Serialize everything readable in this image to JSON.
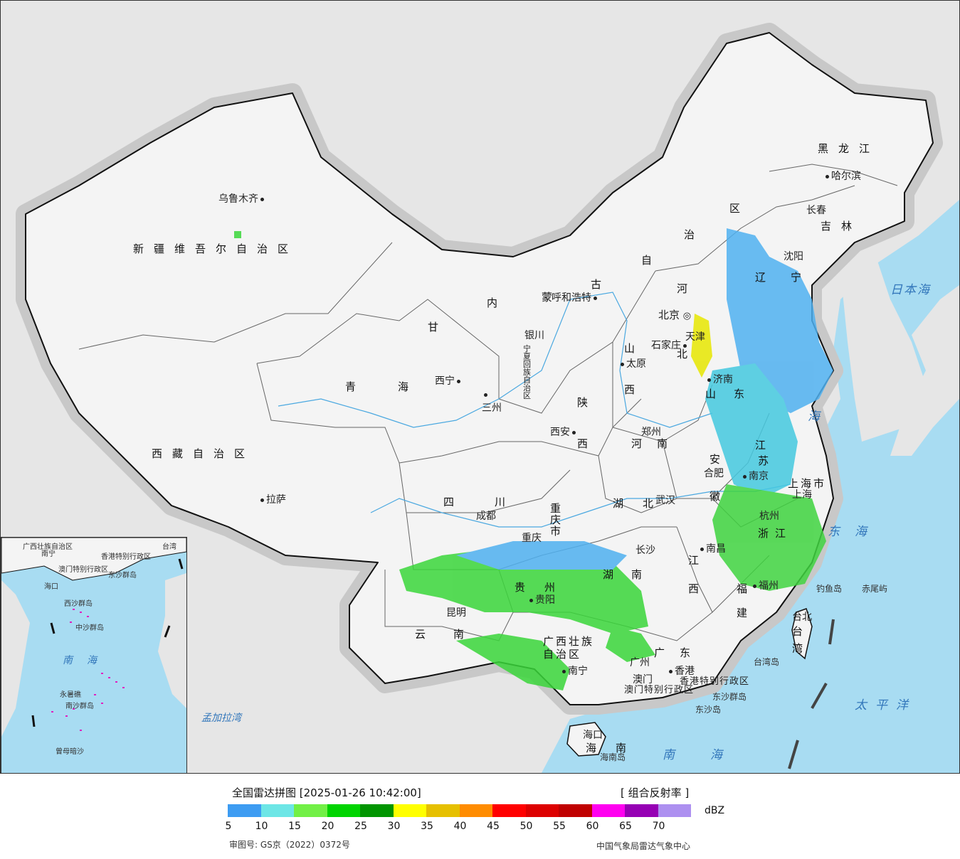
{
  "map": {
    "colors": {
      "ocean": "#a8dcf2",
      "foreign_land": "#e6e6e6",
      "china_land": "#f4f4f4",
      "border": "#111111",
      "river": "#4aa8e0"
    },
    "regions": [
      {
        "key": "xinjiang",
        "text": "新疆维吾尔自治区"
      },
      {
        "key": "xizang",
        "text": "西藏自治区"
      },
      {
        "key": "qinghai_1",
        "text": "青"
      },
      {
        "key": "qinghai_2",
        "text": "海"
      },
      {
        "key": "gansu",
        "text": "甘"
      },
      {
        "key": "neimeng_1",
        "text": "内"
      },
      {
        "key": "neimeng_2",
        "text": "蒙"
      },
      {
        "key": "neimeng_3",
        "text": "古"
      },
      {
        "key": "neimeng_4",
        "text": "自"
      },
      {
        "key": "neimeng_5",
        "text": "治"
      },
      {
        "key": "neimeng_6",
        "text": "区"
      },
      {
        "key": "heilongjiang",
        "text": "黑龙江"
      },
      {
        "key": "jilin",
        "text": "吉林"
      },
      {
        "key": "liaoning_1",
        "text": "辽"
      },
      {
        "key": "liaoning_2",
        "text": "宁"
      },
      {
        "key": "hebei_1",
        "text": "河"
      },
      {
        "key": "hebei_2",
        "text": "北"
      },
      {
        "key": "shanxi_1",
        "text": "山"
      },
      {
        "key": "shanxi_2",
        "text": "西"
      },
      {
        "key": "shandong_1",
        "text": "山"
      },
      {
        "key": "shandong_2",
        "text": "东"
      },
      {
        "key": "henan_1",
        "text": "河"
      },
      {
        "key": "henan_2",
        "text": "南"
      },
      {
        "key": "shaanxi_1",
        "text": "陕"
      },
      {
        "key": "shaanxi_2",
        "text": "西"
      },
      {
        "key": "ningxia",
        "text": "宁夏回族自治区"
      },
      {
        "key": "sichuan_1",
        "text": "四"
      },
      {
        "key": "sichuan_2",
        "text": "川"
      },
      {
        "key": "chongqing",
        "text": "重庆市"
      },
      {
        "key": "hubei_1",
        "text": "湖"
      },
      {
        "key": "hubei_2",
        "text": "北"
      },
      {
        "key": "hunan_1",
        "text": "湖"
      },
      {
        "key": "hunan_2",
        "text": "南"
      },
      {
        "key": "anhui_1",
        "text": "安"
      },
      {
        "key": "anhui_2",
        "text": "徽"
      },
      {
        "key": "jiangsu_1",
        "text": "江"
      },
      {
        "key": "jiangsu_2",
        "text": "苏"
      },
      {
        "key": "zhejiang_1",
        "text": "浙"
      },
      {
        "key": "zhejiang_2",
        "text": "江"
      },
      {
        "key": "jiangxi_1",
        "text": "江"
      },
      {
        "key": "jiangxi_2",
        "text": "西"
      },
      {
        "key": "fujian_1",
        "text": "福"
      },
      {
        "key": "fujian_2",
        "text": "建"
      },
      {
        "key": "guizhou_1",
        "text": "贵"
      },
      {
        "key": "guizhou_2",
        "text": "州"
      },
      {
        "key": "yunnan_1",
        "text": "云"
      },
      {
        "key": "yunnan_2",
        "text": "南"
      },
      {
        "key": "guangxi_1",
        "text": "广西壮族"
      },
      {
        "key": "guangxi_2",
        "text": "自治区"
      },
      {
        "key": "guangdong_1",
        "text": "广"
      },
      {
        "key": "guangdong_2",
        "text": "东"
      },
      {
        "key": "hainan_1",
        "text": "海"
      },
      {
        "key": "hainan_2",
        "text": "南"
      },
      {
        "key": "taiwan_1",
        "text": "台"
      },
      {
        "key": "taiwan_2",
        "text": "湾"
      },
      {
        "key": "shanghai",
        "text": "上海市"
      },
      {
        "key": "hk",
        "text": "香港特别行政区"
      },
      {
        "key": "macao",
        "text": "澳门特别行政区"
      }
    ],
    "cities": [
      {
        "key": "urumqi",
        "text": "乌鲁木齐"
      },
      {
        "key": "lhasa",
        "text": "拉萨"
      },
      {
        "key": "xining",
        "text": "西宁"
      },
      {
        "key": "lanzhou",
        "text": "三州"
      },
      {
        "key": "yinchuan",
        "text": "银川"
      },
      {
        "key": "hohhot",
        "text": "呼和浩特"
      },
      {
        "key": "beijing",
        "text": "北京"
      },
      {
        "key": "tianjin",
        "text": "天津"
      },
      {
        "key": "shijiazhuang",
        "text": "石家庄"
      },
      {
        "key": "taiyuan",
        "text": "太原"
      },
      {
        "key": "jinan",
        "text": "济南"
      },
      {
        "key": "zhengzhou",
        "text": "郑州"
      },
      {
        "key": "xian",
        "text": "西安"
      },
      {
        "key": "chengdu",
        "text": "成都"
      },
      {
        "key": "chongqing",
        "text": "重庆"
      },
      {
        "key": "wuhan",
        "text": "武汉"
      },
      {
        "key": "hefei",
        "text": "合肥"
      },
      {
        "key": "nanjing",
        "text": "南京"
      },
      {
        "key": "shanghai",
        "text": "上海"
      },
      {
        "key": "hangzhou",
        "text": "杭州"
      },
      {
        "key": "nanchang",
        "text": "南昌"
      },
      {
        "key": "changsha",
        "text": "长沙"
      },
      {
        "key": "guiyang",
        "text": "贵阳"
      },
      {
        "key": "kunming",
        "text": "昆明"
      },
      {
        "key": "nanning",
        "text": "南宁"
      },
      {
        "key": "guangzhou",
        "text": "广州"
      },
      {
        "key": "hongkong",
        "text": "香港"
      },
      {
        "key": "macau",
        "text": "澳门"
      },
      {
        "key": "fuzhou",
        "text": "福州"
      },
      {
        "key": "taipei",
        "text": "台北"
      },
      {
        "key": "haikou",
        "text": "海口"
      },
      {
        "key": "shenyang",
        "text": "沈阳"
      },
      {
        "key": "changchun",
        "text": "长春"
      },
      {
        "key": "harbin",
        "text": "哈尔滨"
      }
    ],
    "seas": [
      {
        "key": "japan_sea",
        "text": "日本海"
      },
      {
        "key": "yellow_sea",
        "text": "海"
      },
      {
        "key": "east_sea_1",
        "text": "东"
      },
      {
        "key": "east_sea_2",
        "text": "海"
      },
      {
        "key": "pacific",
        "text": "太平洋"
      },
      {
        "key": "south_sea",
        "text": "南海"
      },
      {
        "key": "bengal",
        "text": "孟加拉湾"
      }
    ],
    "islands": [
      {
        "key": "diaoyu",
        "text": "钓鱼岛"
      },
      {
        "key": "chiwei",
        "text": "赤尾屿"
      },
      {
        "key": "taiwan_island",
        "text": "台湾岛"
      },
      {
        "key": "dongsha_group",
        "text": "东沙群岛"
      },
      {
        "key": "dongsha",
        "text": "东沙岛"
      },
      {
        "key": "hainan_island",
        "text": "海南岛"
      }
    ],
    "inset": {
      "labels": [
        "广西壮族自治区",
        "南宁",
        "香港特别行政区",
        "澳门特别行政区",
        "东沙群岛",
        "台湾",
        "海口",
        "中沙群岛",
        "南海",
        "南沙群岛",
        "永暑礁",
        "曾母暗沙",
        "西沙群岛"
      ]
    }
  },
  "legend": {
    "title": "全国雷达拼图 [2025-01-26 10:42:00]",
    "product": "[ 组合反射率 ]",
    "unit": "dBZ",
    "colors": [
      "#3d9cf2",
      "#6de6e6",
      "#72f046",
      "#00d400",
      "#009500",
      "#ffff00",
      "#e6c000",
      "#ff8c00",
      "#ff0000",
      "#dd0000",
      "#c00000",
      "#ff00f0",
      "#9600b4",
      "#ad90f0"
    ],
    "ticks": [
      "5",
      "10",
      "15",
      "20",
      "25",
      "30",
      "35",
      "40",
      "45",
      "50",
      "55",
      "60",
      "65",
      "70"
    ],
    "approval": "审图号: GS京（2022）0372号",
    "source": "中国气象局雷达气象中心"
  }
}
